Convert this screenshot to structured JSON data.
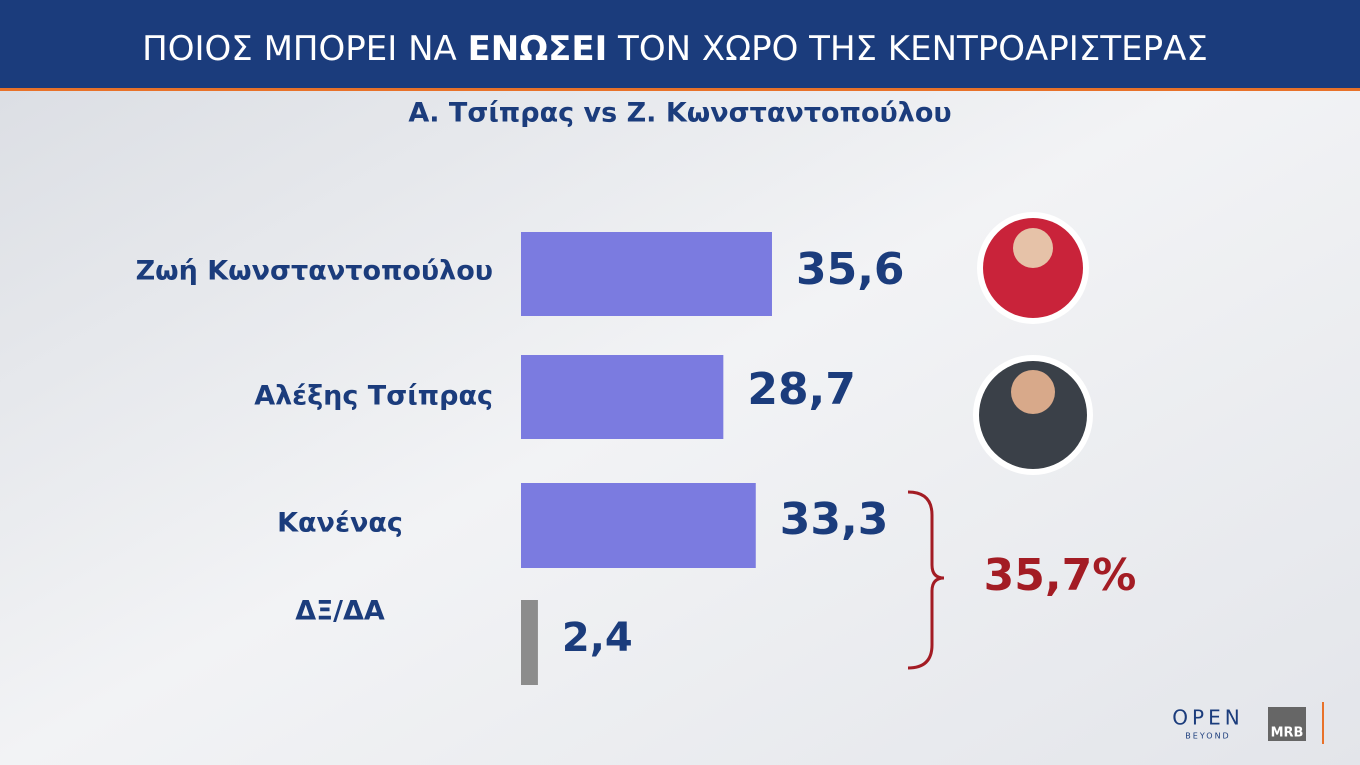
{
  "chart_data": {
    "type": "bar",
    "title": [
      "ΠΟΙΟΣ  ΜΠΟΡΕΙ ΝΑ ",
      "ΕΝΩΣΕΙ",
      " ΤΟΝ ΧΩΡΟ ΤΗΣ ΚΕΝΤΡΟΑΡΙΣΤΕΡΑΣ"
    ],
    "subtitle": "Α. Τσίπρας vs Ζ. Κωνσταντοπούλου",
    "categories": [
      "Ζωή Κωνσταντοπούλου",
      "Αλέξης Τσίπρας",
      "Κανένας",
      "ΔΞ/ΔΑ"
    ],
    "values": [
      35.6,
      28.7,
      33.3,
      2.4
    ],
    "value_labels": [
      "35,6",
      "28,7",
      "33,3",
      "2,4"
    ],
    "colors": [
      "#7b7be0",
      "#7b7be0",
      "#7b7be0",
      "#8c8c8c"
    ],
    "annotation": {
      "value": 35.7,
      "label": "35,7%"
    },
    "logos": [
      "OPEN",
      "BEYOND",
      "MRB"
    ]
  }
}
